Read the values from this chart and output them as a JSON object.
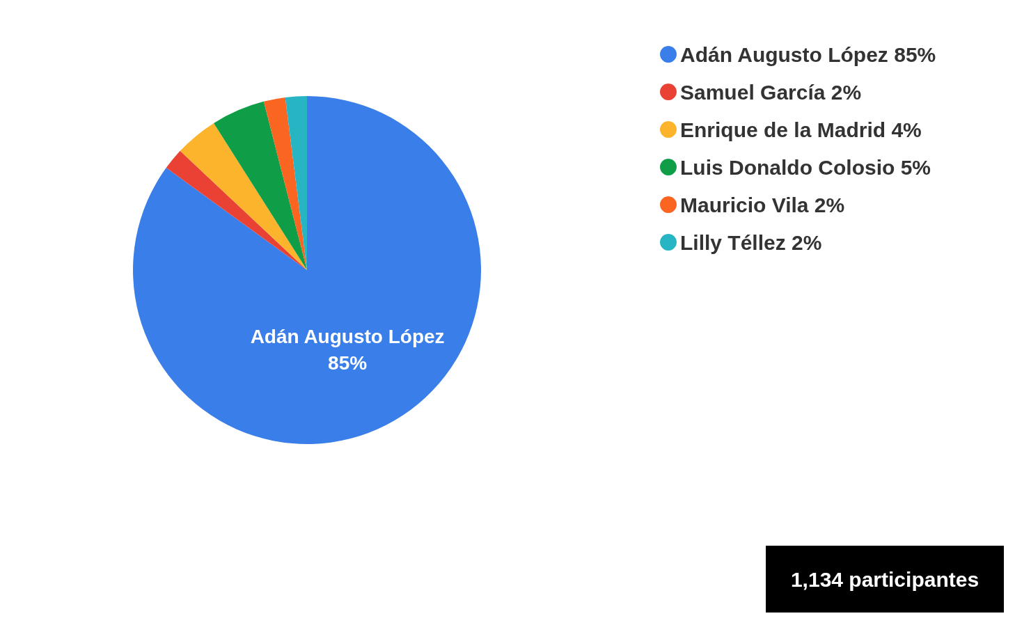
{
  "chart_data": {
    "type": "pie",
    "categories": [
      "Adán Augusto López",
      "Samuel García",
      "Enrique de la Madrid",
      "Luis Donaldo Colosio",
      "Mauricio Vila",
      "Lilly Téllez"
    ],
    "values": [
      85,
      2,
      4,
      5,
      2,
      2
    ],
    "colors": [
      "#3a7ee9",
      "#e94235",
      "#fbb42c",
      "#0f9d48",
      "#fb6522",
      "#27b5c3"
    ],
    "value_labels": [
      "85%",
      "2%",
      "4%",
      "5%",
      "2%",
      "2%"
    ],
    "legend": "top right",
    "annotations": [
      "1,134 participantes"
    ]
  }
}
